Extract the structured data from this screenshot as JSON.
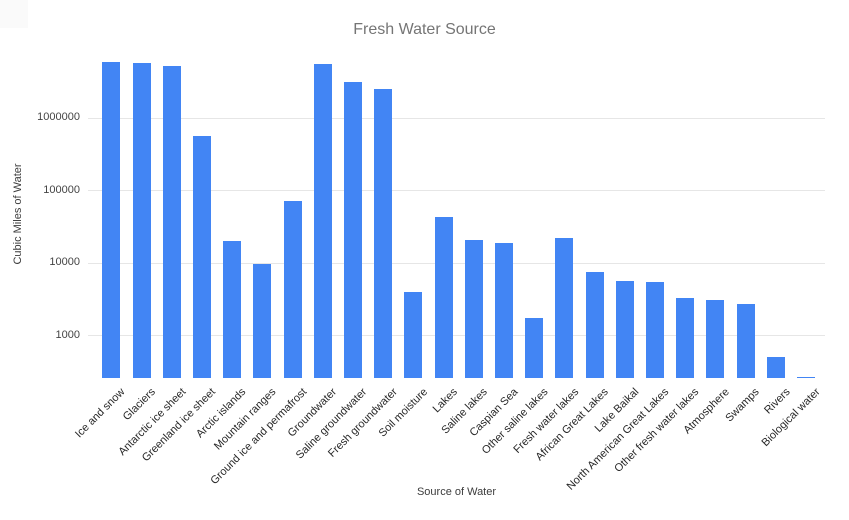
{
  "chart_data": {
    "type": "bar",
    "title": "Fresh Water Source",
    "xlabel": "Source of Water",
    "ylabel": "Cubic Miles of Water",
    "scale": "log",
    "grid": true,
    "legend": "none",
    "bar_color": "#4285f4",
    "gridline_color": "#e6e6e6",
    "title_color": "#757575",
    "y_ticks": [
      1000,
      10000,
      100000,
      1000000
    ],
    "y_tick_labels": [
      "1000",
      "10000",
      "100000",
      "1000000"
    ],
    "ylim": [
      258,
      7000000
    ],
    "categories": [
      "Ice and snow",
      "Glaciers",
      "Antarctic ice sheet",
      "Greenland ice sheet",
      "Arctic islands",
      "Mountain ranges",
      "Ground ice and permafrost",
      "Groundwater",
      "Saline groundwater",
      "Fresh groundwater",
      "Soil moisture",
      "Lakes",
      "Saline lakes",
      "Caspian Sea",
      "Other saline lakes",
      "Fresh water lakes",
      "African Great Lakes",
      "Lake Baikal",
      "North American Great Lakes",
      "Other fresh water lakes",
      "Atmosphere",
      "Swamps",
      "Rivers",
      "Biological water"
    ],
    "values": [
      5845000,
      5773000,
      5182000,
      561000,
      20030,
      9740,
      71970,
      5614000,
      3088000,
      2526000,
      3959,
      42320,
      20490,
      18760,
      1730,
      21830,
      7390,
      5662,
      5450,
      3330,
      3095,
      2752,
      509,
      269
    ]
  }
}
